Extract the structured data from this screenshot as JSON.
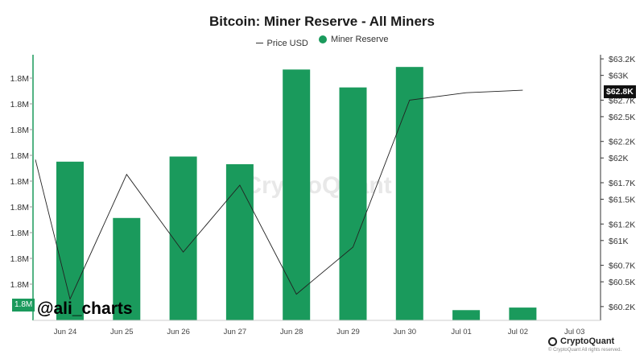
{
  "chart_data": {
    "type": "bar",
    "title": "Bitcoin: Miner Reserve - All Miners",
    "legend_position": "top",
    "grid": false,
    "categories": [
      "Jun 24",
      "Jun 25",
      "Jun 26",
      "Jun 27",
      "Jun 28",
      "Jun 29",
      "Jun 30",
      "Jul 01",
      "Jul 02",
      "Jul 03"
    ],
    "series": [
      {
        "name": "Miner Reserve",
        "type": "bar",
        "axis": "left",
        "color": "#1a9a5c",
        "relative_values": [
          0.62,
          0.4,
          0.64,
          0.61,
          0.98,
          0.91,
          0.99,
          0.04,
          0.05,
          null
        ]
      },
      {
        "name": "Price USD",
        "type": "line",
        "axis": "right",
        "color": "#222222",
        "x": [
          "Jun 24",
          "Jun 24",
          "Jun 25",
          "Jun 26",
          "Jun 27",
          "Jun 28",
          "Jun 29",
          "Jun 30",
          "Jul 01",
          "Jul 02"
        ],
        "x_offset": [
          -0.5,
          0,
          0,
          0,
          0,
          0,
          0,
          0,
          0,
          0
        ],
        "values": [
          61980,
          60290,
          61800,
          60860,
          61670,
          60350,
          60920,
          62700,
          62790,
          62820
        ]
      }
    ],
    "y_left": {
      "tick_labels": [
        "1.8M",
        "1.8M",
        "1.8M",
        "1.8M",
        "1.8M",
        "1.8M",
        "1.8M",
        "1.8M",
        "1.8M"
      ]
    },
    "y_right": {
      "range": [
        60150,
        63250
      ],
      "ticks": [
        60200,
        60500,
        60700,
        61000,
        61200,
        61500,
        61700,
        62000,
        62200,
        62500,
        62700,
        63000,
        63200
      ],
      "tick_labels": [
        "$60.2K",
        "$60.5K",
        "$60.7K",
        "$61K",
        "$61.2K",
        "$61.5K",
        "$61.7K",
        "$62K",
        "$62.2K",
        "$62.5K",
        "$62.7K",
        "$63K",
        "$63.2K"
      ]
    },
    "current_value_labels": {
      "left": "1.8M",
      "right": "$62.8K"
    }
  },
  "annotations": {
    "watermark": "CryptoQuant",
    "handle": "@ali_charts",
    "brand": "CryptoQuant",
    "copyright": "© CryptoQuant All rights reserved."
  }
}
